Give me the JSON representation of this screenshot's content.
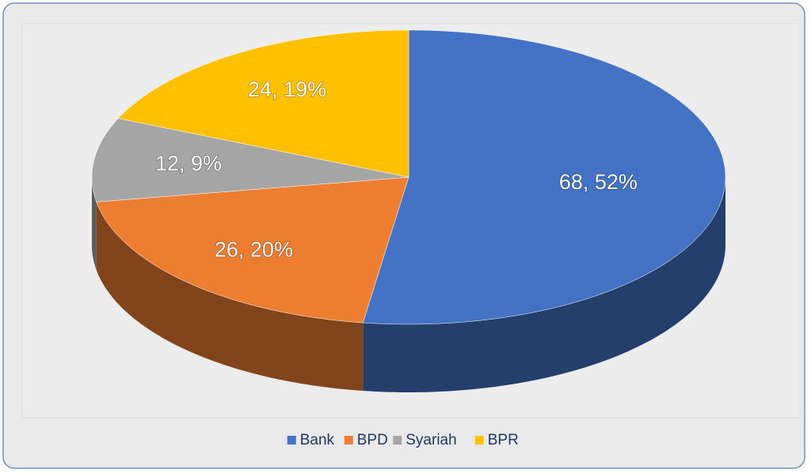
{
  "chart_data": {
    "type": "pie3d",
    "categories": [
      "Bank",
      "BPD",
      "Syariah",
      "BPR"
    ],
    "values": [
      68,
      26,
      12,
      24
    ],
    "value_labels": [
      "68, 52%",
      "26, 20%",
      "12, 9%",
      "24, 19%"
    ],
    "colors": [
      "#4472c4",
      "#ed7d31",
      "#a5a5a5",
      "#ffc000"
    ],
    "legend": "bottom"
  }
}
